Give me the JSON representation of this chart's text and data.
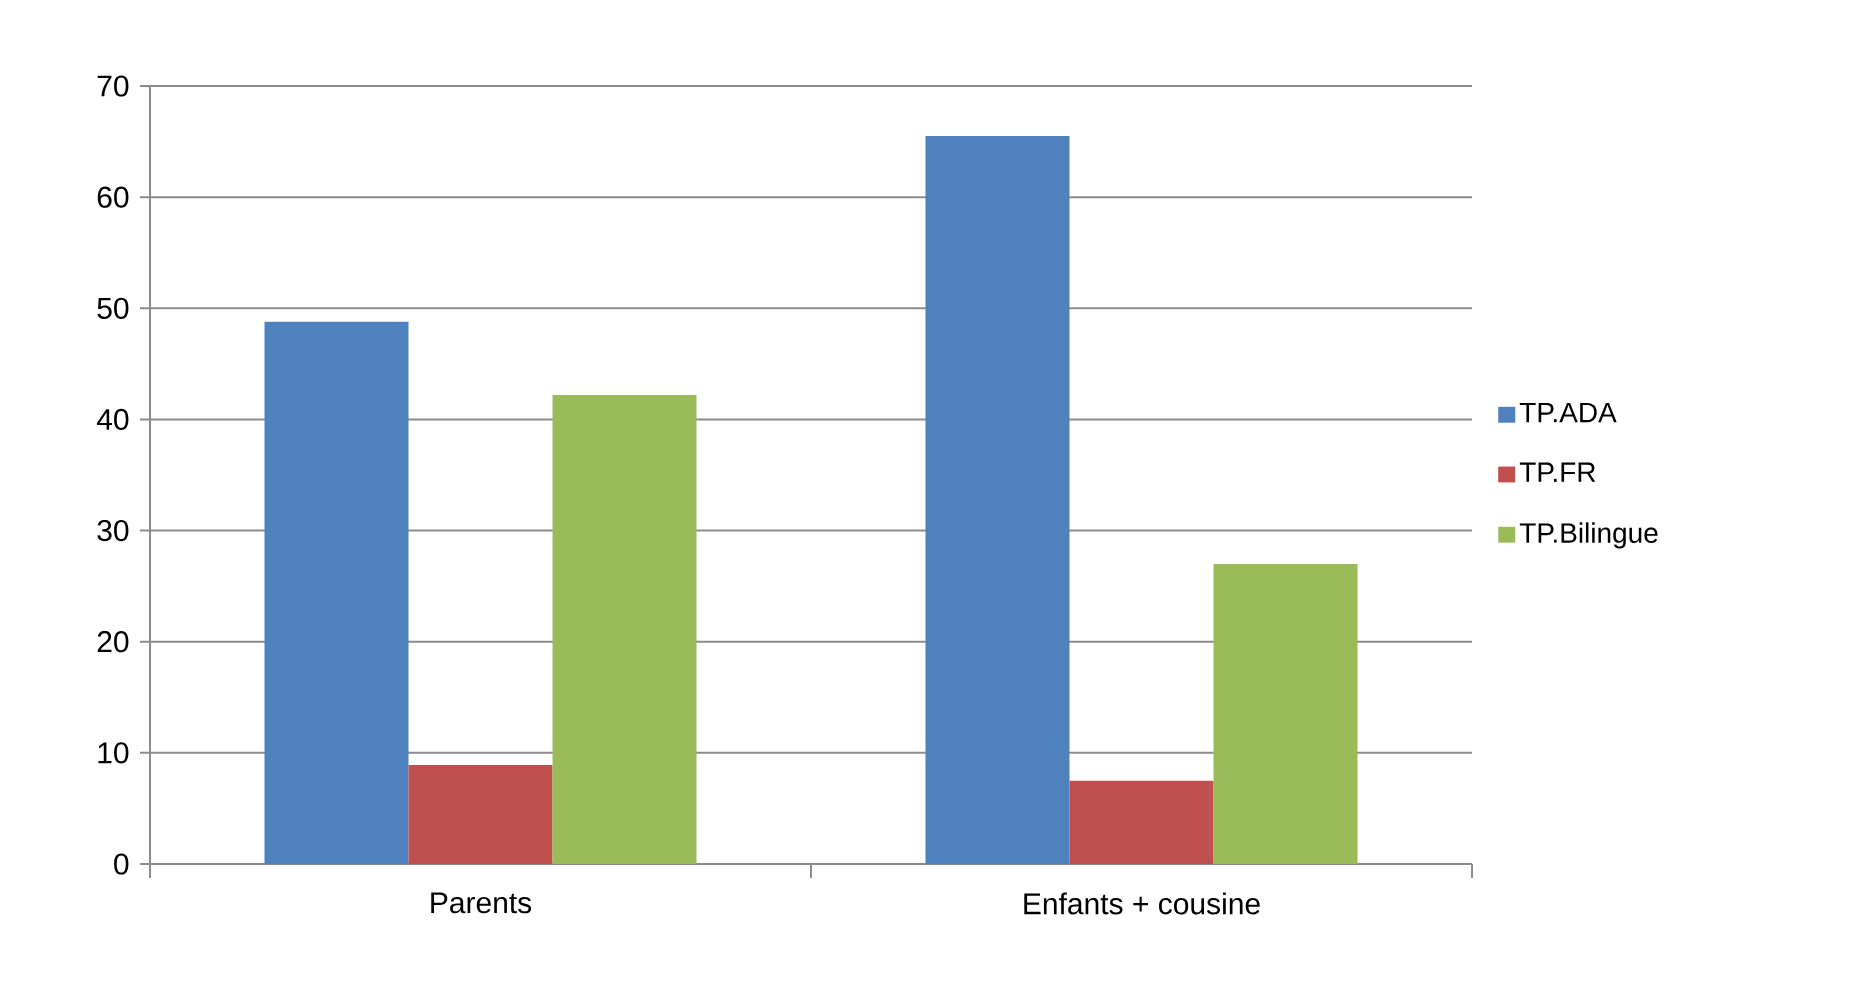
{
  "chart_data": {
    "type": "bar",
    "categories": [
      "Parents",
      "Enfants + cousine"
    ],
    "series": [
      {
        "name": "TP.ADA",
        "color": "#4f81bd",
        "values": [
          48.8,
          65.5
        ]
      },
      {
        "name": "TP.FR",
        "color": "#c0504d",
        "values": [
          8.9,
          7.5
        ]
      },
      {
        "name": "TP.Bilingue",
        "color": "#9bbb59",
        "values": [
          42.2,
          27.0
        ]
      }
    ],
    "ylim": [
      0,
      70
    ],
    "yticks": [
      0,
      10,
      20,
      30,
      40,
      50,
      60,
      70
    ],
    "grid": "y",
    "legend": "right"
  }
}
